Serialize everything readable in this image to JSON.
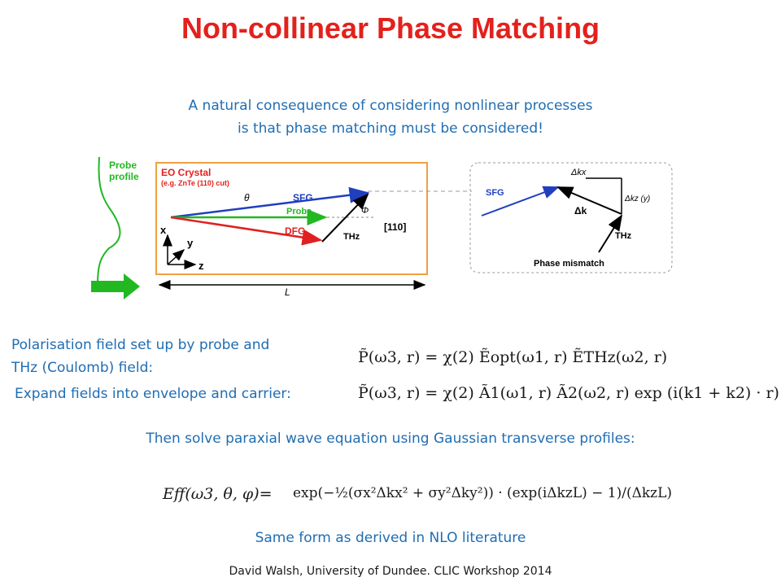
{
  "title": "Non-collinear Phase Matching",
  "intro": {
    "line1": "A natural consequence of considering nonlinear processes",
    "line2": "is that phase matching must be considered!"
  },
  "diagram": {
    "probe_profile": [
      "Probe",
      "profile"
    ],
    "crystal_label": "EO Crystal",
    "crystal_sublabel": "(e.g. ZnTe (110) cut)",
    "theta": "θ",
    "phi": "Φ",
    "sfg": "SFG",
    "probe": "Probe",
    "dfg": "DFG",
    "thz": "THz",
    "axis_110": "[110]",
    "axis_x": "x",
    "axis_y": "y",
    "axis_z": "z",
    "length": "L",
    "inset": {
      "sfg": "SFG",
      "dkx": "Δkx",
      "dk": "Δk",
      "dkz": "Δkz (y)",
      "thz": "THz",
      "mismatch": "Phase mismatch"
    }
  },
  "body": {
    "polarisation_line1": "Polarisation field set up by probe and",
    "polarisation_line2": "THz (Coulomb) field:",
    "expand": "Expand fields into envelope and carrier:",
    "paraxial": "Then solve paraxial wave equation using Gaussian transverse profiles:",
    "same_form": "Same form as derived in NLO literature"
  },
  "equations": {
    "eq1_lhs": "P̃(ω3, r) = χ(2) Ẽopt(ω1, r) ẼTHz(ω2, r)",
    "eq2_lhs": "P̃(ω3, r) = χ(2) Ã1(ω1, r) Ã2(ω2, r) exp (i(k1 + k2) · r)",
    "eff_lhs": "Eff(ω3, θ, φ)=",
    "eff_rhs": "exp(−½(σx²Δkx² + σy²Δky²)) · (exp(iΔkzL) − 1)/(ΔkzL)"
  },
  "footer": "David Walsh, University of Dundee.  CLIC Workshop 2014",
  "colors": {
    "title": "#e3211c",
    "text_blue": "#1f6db3",
    "crystal_border": "#f0a040",
    "sfg": "#1f3fbf",
    "probe": "#22b822",
    "dfg": "#e02020",
    "arrow_green": "#22b822"
  }
}
